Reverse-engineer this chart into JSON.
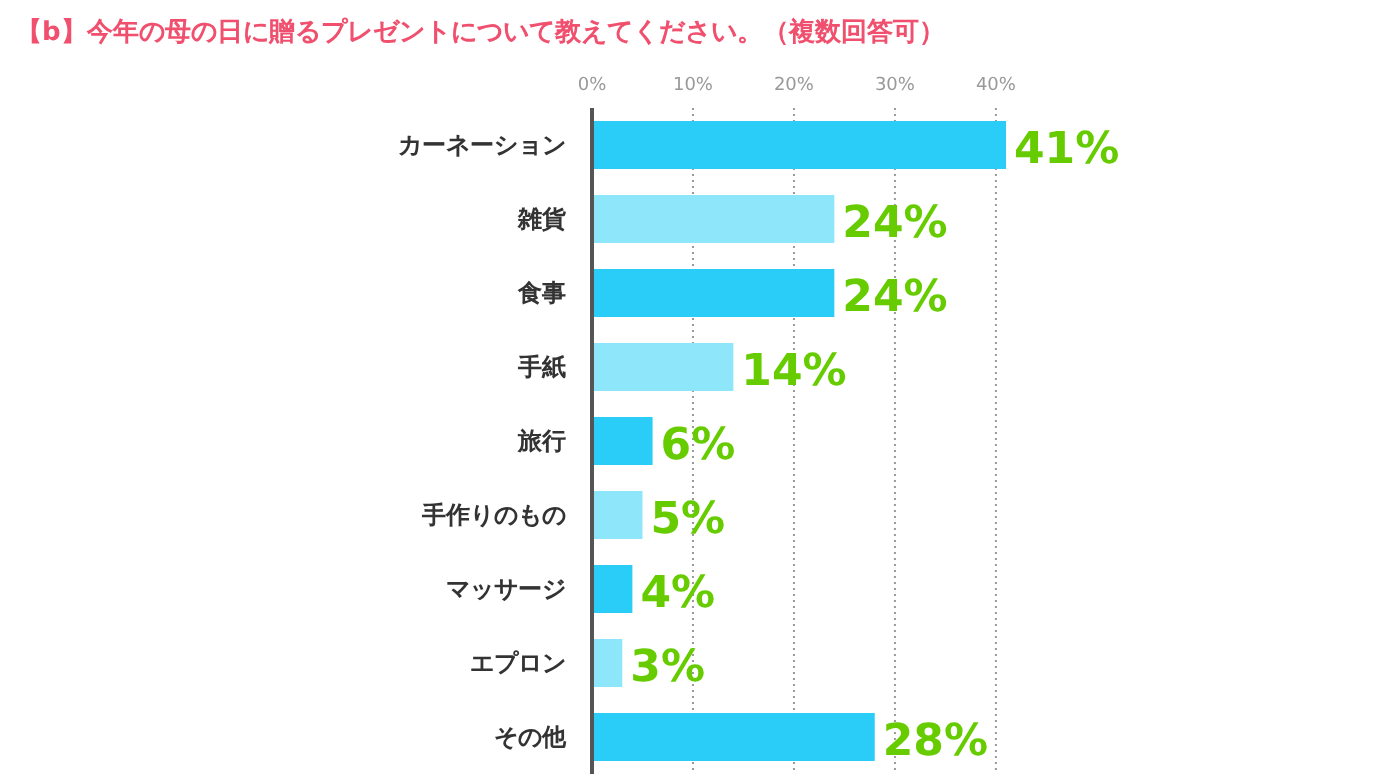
{
  "chart_data": {
    "type": "bar",
    "orientation": "horizontal",
    "title": "【b】今年の母の日に贈るプレゼントについて教えてください。（複数回答可）",
    "categories": [
      "カーネーション",
      "雑貨",
      "食事",
      "手紙",
      "旅行",
      "手作りのもの",
      "マッサージ",
      "エプロン",
      "その他"
    ],
    "values": [
      41,
      24,
      24,
      14,
      6,
      5,
      4,
      3,
      28
    ],
    "colors": [
      "#29cdf7",
      "#8ee6fb",
      "#29cdf7",
      "#8ee6fb",
      "#29cdf7",
      "#8ee6fb",
      "#29cdf7",
      "#8ee6fb",
      "#29cdf7"
    ],
    "value_labels": [
      "41%",
      "24%",
      "24%",
      "14%",
      "6%",
      "5%",
      "4%",
      "3%",
      "28%"
    ],
    "xlim": [
      0,
      41
    ],
    "xticks": [
      {
        "value": 0,
        "label": "0%"
      },
      {
        "value": 10,
        "label": "10%"
      },
      {
        "value": 20,
        "label": "20%"
      },
      {
        "value": 30,
        "label": "30%"
      },
      {
        "value": 40,
        "label": "40%"
      }
    ],
    "grid": "x"
  }
}
